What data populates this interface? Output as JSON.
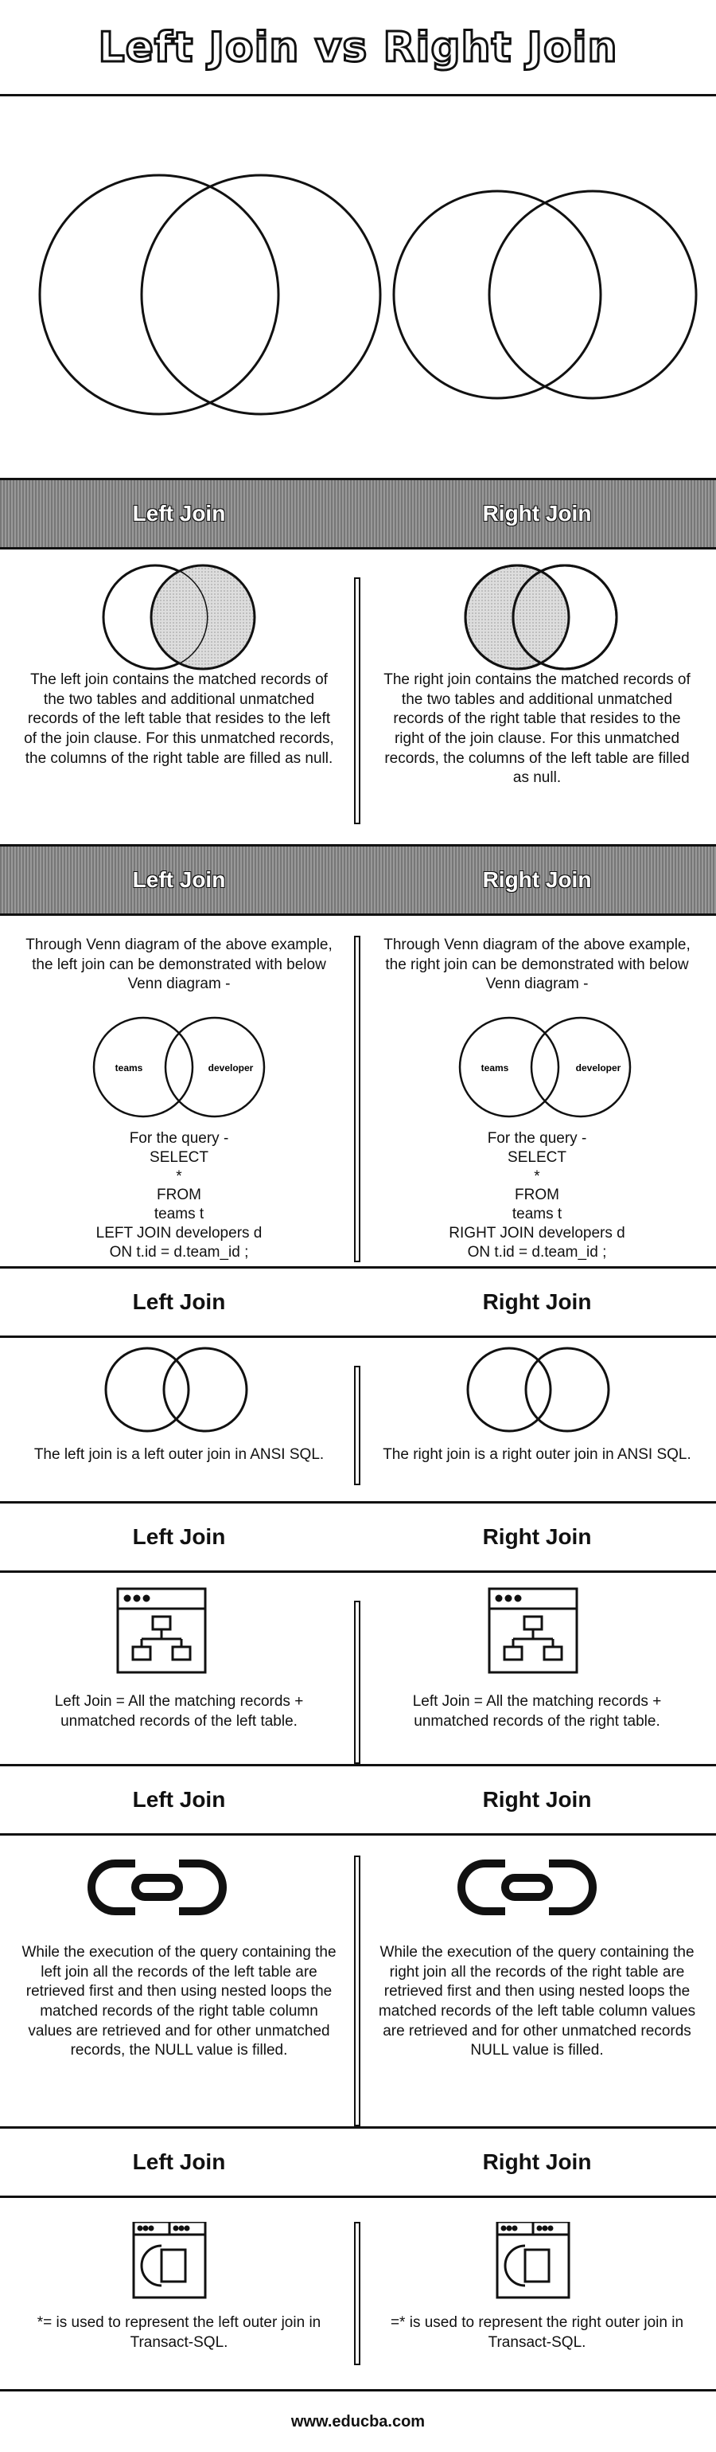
{
  "title": "Left Join vs Right Join",
  "headers": {
    "left": "Left Join",
    "right": "Right Join"
  },
  "rows": [
    {
      "left": "The left join contains the matched records of the two tables and additional unmatched records of the left table that resides to the left of the join clause. For this unmatched records, the columns of the right table are filled as null.",
      "right": "The right join contains the matched records of the two tables and additional unmatched records of the right table that resides to the right of the join clause. For this unmatched records, the columns of the left table are filled as null."
    },
    {
      "left_intro": "Through Venn diagram of the above example, the left join can be demonstrated with below Venn diagram -",
      "right_intro": "Through Venn diagram of the above example, the right join can be demonstrated with below Venn diagram -",
      "venn_left_label": "teams",
      "venn_right_label": "developer",
      "left_query": "For the query -\nSELECT\n*\nFROM\nteams t\nLEFT JOIN developers d\nON t.id = d.team_id ;",
      "right_query": "For the query -\nSELECT\n*\nFROM\nteams t\nRIGHT JOIN developers d\nON t.id = d.team_id ;"
    },
    {
      "left": "The left join is a left outer join in ANSI SQL.",
      "right": "The right join is a right outer join in ANSI SQL."
    },
    {
      "left": "Left Join = All the matching records + unmatched records of the left table.",
      "right": "Left Join = All the matching records + unmatched records of the right table."
    },
    {
      "left": "While the execution of the query containing the left join all the records of the left table are retrieved first and then using nested loops the matched records of the right table column values are retrieved and for other unmatched records, the NULL value is filled.",
      "right": "While the execution of the query containing the right join all the records of the right table are retrieved first and then using nested loops the matched records of the left table column values are retrieved and for other unmatched records NULL value is filled."
    },
    {
      "left": "*= is used to represent the left outer join in Transact-SQL.",
      "right": "=* is used to represent the right outer join in Transact-SQL."
    }
  ],
  "icons": [
    "venn-diagram-icon",
    "table-hierarchy-icon",
    "chain-link-icon",
    "window-panels-icon"
  ],
  "footer": "www.educba.com"
}
